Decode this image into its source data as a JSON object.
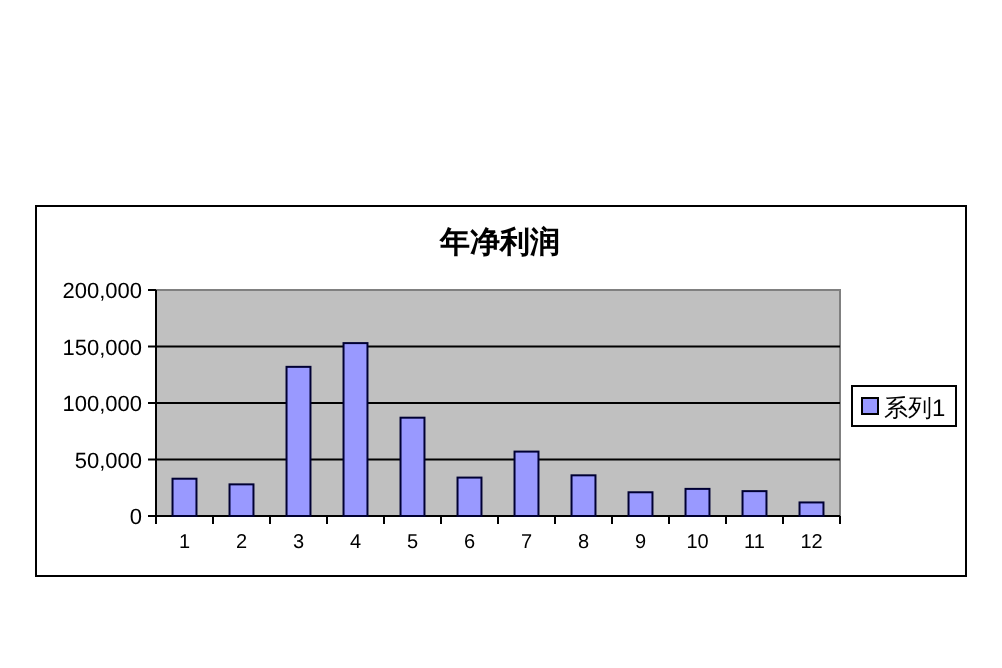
{
  "chart_data": {
    "type": "bar",
    "title": "年净利润",
    "categories": [
      "1",
      "2",
      "3",
      "4",
      "5",
      "6",
      "7",
      "8",
      "9",
      "10",
      "11",
      "12"
    ],
    "series": [
      {
        "name": "系列1",
        "color": "#9999ff",
        "values": [
          33000,
          28000,
          132000,
          153000,
          87000,
          34000,
          57000,
          36000,
          21000,
          24000,
          22000,
          12000
        ]
      }
    ],
    "ylim": [
      0,
      200000
    ],
    "yticks": [
      {
        "value": 0,
        "label": "0"
      },
      {
        "value": 50000,
        "label": "50,000"
      },
      {
        "value": 100000,
        "label": "100,000"
      },
      {
        "value": 150000,
        "label": "150,000"
      },
      {
        "value": 200000,
        "label": "200,000"
      }
    ],
    "grid": "y",
    "legend": "right"
  }
}
